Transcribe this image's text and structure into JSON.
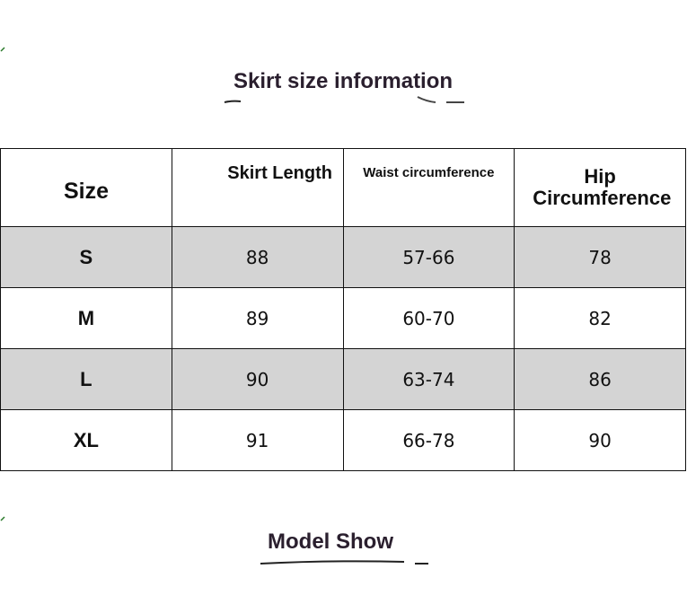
{
  "header": {
    "title": "Skirt size information"
  },
  "table": {
    "columns": [
      "Size",
      "Skirt Length",
      "Waist circumference",
      "Hip Circumference"
    ],
    "rows": [
      [
        "S",
        88,
        "57-66",
        78
      ],
      [
        "M",
        89,
        "60-70",
        82
      ],
      [
        "L",
        90,
        "63-74",
        86
      ],
      [
        "XL",
        91,
        "66-78",
        90
      ]
    ]
  },
  "footer": {
    "title": "Model Show"
  }
}
